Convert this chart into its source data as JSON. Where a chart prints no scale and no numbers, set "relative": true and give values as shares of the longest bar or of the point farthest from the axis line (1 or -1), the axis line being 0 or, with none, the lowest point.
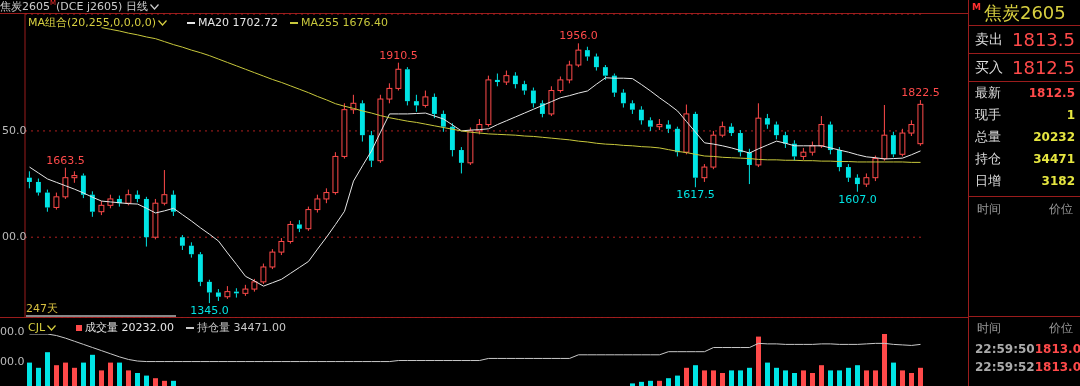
{
  "chart_data": [
    {
      "type": "candlestick",
      "title": "焦炭2605$^{M}$(DCE j2605) 日线",
      "legend": "top left",
      "legend_title": "MA组合(20,255,0,0,0,0)",
      "grid": "y",
      "tick_labels": "y",
      "marker": "none",
      "categories": [
        null,
        null,
        null,
        null,
        null,
        null,
        null,
        null,
        null,
        null,
        null,
        null,
        null,
        null,
        null,
        null,
        null,
        null,
        null,
        null,
        null,
        null,
        null,
        null,
        null,
        null,
        null,
        null,
        null,
        null,
        null,
        null,
        null,
        null,
        null,
        null,
        null,
        null,
        null,
        null,
        null,
        null,
        null,
        null,
        null,
        null,
        null,
        null,
        null,
        null,
        null,
        null,
        null,
        null,
        null,
        null,
        null,
        null,
        null,
        null,
        null,
        null,
        null,
        null,
        null,
        null,
        null,
        null,
        null,
        null,
        null,
        null,
        null,
        null,
        null,
        null,
        null,
        null,
        null,
        null,
        null,
        null,
        null,
        null,
        null,
        null,
        null,
        null,
        null,
        null,
        null,
        null,
        null,
        null,
        null,
        null,
        null,
        null,
        null,
        null
      ],
      "ylim": [
        1310,
        2025
      ],
      "yticks": [
        {
          "value": 1500,
          "label": null
        },
        {
          "value": 1750,
          "label": null
        }
      ],
      "annotations": [
        {
          "text": "1663.5",
          "y": 1663.5
        },
        {
          "text": "1345.0",
          "y": 1345.0
        },
        {
          "text": "1910.5",
          "y": 1910.5
        },
        {
          "text": "1956.0",
          "y": 1956.0
        },
        {
          "text": "1617.5",
          "y": 1617.5
        },
        {
          "text": "1607.0",
          "y": 1607.0
        },
        {
          "text": "1822.5",
          "y": 1822.5
        },
        "247天",
        "00.0",
        "50.0"
      ],
      "series": [
        {
          "type": "candlestick",
          "ohlc": [
            [
              1640,
              1655,
              1615,
              1630
            ],
            [
              1630,
              1638,
              1598,
              1605
            ],
            [
              1605,
              1612,
              1560,
              1570
            ],
            [
              1570,
              1605,
              1565,
              1595
            ],
            [
              1595,
              1663.5,
              1590,
              1640
            ],
            [
              1640,
              1655,
              1628,
              1645
            ],
            [
              1645,
              1650,
              1592,
              1600
            ],
            [
              1600,
              1608,
              1548,
              1560
            ],
            [
              1560,
              1585,
              1552,
              1575
            ],
            [
              1575,
              1600,
              1568,
              1590
            ],
            [
              1590,
              1598,
              1572,
              1580
            ],
            [
              1580,
              1612,
              1575,
              1600
            ],
            [
              1600,
              1610,
              1582,
              1590
            ],
            [
              1590,
              1595,
              1478,
              1500
            ],
            [
              1500,
              1590,
              1495,
              1580
            ],
            [
              1580,
              1658,
              1575,
              1600
            ],
            [
              1600,
              1610,
              1550,
              1560
            ],
            [
              1500,
              1505,
              1470,
              1480
            ],
            [
              1480,
              1488,
              1452,
              1460
            ],
            [
              1460,
              1465,
              1385,
              1395
            ],
            [
              1395,
              1400,
              1345.0,
              1370
            ],
            [
              1370,
              1378,
              1350,
              1360
            ],
            [
              1360,
              1385,
              1355,
              1372
            ],
            [
              1372,
              1380,
              1358,
              1368
            ],
            [
              1368,
              1388,
              1362,
              1378
            ],
            [
              1378,
              1402,
              1372,
              1395
            ],
            [
              1395,
              1438,
              1390,
              1430
            ],
            [
              1430,
              1472,
              1425,
              1465
            ],
            [
              1465,
              1498,
              1458,
              1490
            ],
            [
              1490,
              1538,
              1485,
              1530
            ],
            [
              1530,
              1540,
              1512,
              1520
            ],
            [
              1520,
              1572,
              1515,
              1565
            ],
            [
              1565,
              1600,
              1558,
              1590
            ],
            [
              1590,
              1615,
              1580,
              1605
            ],
            [
              1605,
              1700,
              1600,
              1690
            ],
            [
              1690,
              1815,
              1685,
              1800
            ],
            [
              1800,
              1835,
              1790,
              1815
            ],
            [
              1815,
              1822,
              1725,
              1740
            ],
            [
              1740,
              1750,
              1665,
              1680
            ],
            [
              1680,
              1835,
              1675,
              1825
            ],
            [
              1825,
              1862,
              1815,
              1850
            ],
            [
              1850,
              1910.5,
              1845,
              1895
            ],
            [
              1895,
              1900,
              1810,
              1820
            ],
            [
              1820,
              1835,
              1795,
              1810
            ],
            [
              1810,
              1845,
              1805,
              1830
            ],
            [
              1830,
              1838,
              1780,
              1790
            ],
            [
              1790,
              1798,
              1748,
              1760
            ],
            [
              1760,
              1768,
              1690,
              1705
            ],
            [
              1705,
              1712,
              1650,
              1675
            ],
            [
              1675,
              1758,
              1670,
              1750
            ],
            [
              1750,
              1778,
              1742,
              1765
            ],
            [
              1765,
              1880,
              1760,
              1870
            ],
            [
              1870,
              1885,
              1855,
              1865
            ],
            [
              1865,
              1892,
              1858,
              1880
            ],
            [
              1880,
              1888,
              1850,
              1860
            ],
            [
              1860,
              1868,
              1835,
              1845
            ],
            [
              1845,
              1852,
              1805,
              1815
            ],
            [
              1815,
              1822,
              1782,
              1790
            ],
            [
              1790,
              1855,
              1785,
              1845
            ],
            [
              1845,
              1878,
              1840,
              1870
            ],
            [
              1870,
              1915,
              1862,
              1905
            ],
            [
              1905,
              1956.0,
              1900,
              1940
            ],
            [
              1940,
              1948,
              1915,
              1925
            ],
            [
              1925,
              1932,
              1892,
              1900
            ],
            [
              1900,
              1905,
              1870,
              1880
            ],
            [
              1880,
              1885,
              1830,
              1840
            ],
            [
              1840,
              1848,
              1805,
              1815
            ],
            [
              1815,
              1822,
              1790,
              1800
            ],
            [
              1800,
              1808,
              1765,
              1775
            ],
            [
              1775,
              1782,
              1750,
              1760
            ],
            [
              1760,
              1778,
              1752,
              1765
            ],
            [
              1765,
              1775,
              1745,
              1755
            ],
            [
              1755,
              1760,
              1690,
              1700
            ],
            [
              1700,
              1812,
              1695,
              1790
            ],
            [
              1790,
              1795,
              1617.5,
              1640
            ],
            [
              1640,
              1672,
              1630,
              1665
            ],
            [
              1665,
              1750,
              1660,
              1740
            ],
            [
              1740,
              1772,
              1735,
              1760
            ],
            [
              1760,
              1768,
              1738,
              1745
            ],
            [
              1745,
              1752,
              1690,
              1700
            ],
            [
              1700,
              1708,
              1625,
              1670
            ],
            [
              1670,
              1815,
              1665,
              1780
            ],
            [
              1780,
              1790,
              1755,
              1765
            ],
            [
              1765,
              1772,
              1730,
              1740
            ],
            [
              1740,
              1748,
              1710,
              1720
            ],
            [
              1720,
              1728,
              1680,
              1690
            ],
            [
              1690,
              1710,
              1682,
              1700
            ],
            [
              1700,
              1725,
              1692,
              1715
            ],
            [
              1715,
              1785,
              1710,
              1765
            ],
            [
              1765,
              1772,
              1695,
              1705
            ],
            [
              1705,
              1712,
              1655,
              1665
            ],
            [
              1665,
              1672,
              1630,
              1640
            ],
            [
              1640,
              1648,
              1607.0,
              1625
            ],
            [
              1625,
              1650,
              1618,
              1640
            ],
            [
              1640,
              1692,
              1632,
              1685
            ],
            [
              1685,
              1811,
              1680,
              1740
            ],
            [
              1740,
              1748,
              1688,
              1695
            ],
            [
              1695,
              1755,
              1690,
              1745
            ],
            [
              1745,
              1775,
              1738,
              1765
            ],
            [
              1720,
              1822.5,
              1715,
              1812.5
            ]
          ],
          "colors": [
            "#00e5e5",
            "#00e5e5",
            "#00e5e5",
            "#ff4a4a",
            "#ff4a4a",
            "#ff4a4a",
            "#00e5e5",
            "#00e5e5",
            "#ff4a4a",
            "#ff4a4a",
            "#00e5e5",
            "#ff4a4a",
            "#00e5e5",
            "#00e5e5",
            "#ff4a4a",
            "#ff4a4a",
            "#00e5e5",
            "#00e5e5",
            "#00e5e5",
            "#00e5e5",
            "#00e5e5",
            "#00e5e5",
            "#ff4a4a",
            "#00e5e5",
            "#ff4a4a",
            "#ff4a4a",
            "#ff4a4a",
            "#ff4a4a",
            "#ff4a4a",
            "#ff4a4a",
            "#00e5e5",
            "#ff4a4a",
            "#ff4a4a",
            "#ff4a4a",
            "#ff4a4a",
            "#ff4a4a",
            "#ff4a4a",
            "#00e5e5",
            "#00e5e5",
            "#ff4a4a",
            "#ff4a4a",
            "#ff4a4a",
            "#00e5e5",
            "#00e5e5",
            "#ff4a4a",
            "#00e5e5",
            "#00e5e5",
            "#00e5e5",
            "#00e5e5",
            "#ff4a4a",
            "#ff4a4a",
            "#ff4a4a",
            "#00e5e5",
            "#ff4a4a",
            "#00e5e5",
            "#00e5e5",
            "#00e5e5",
            "#00e5e5",
            "#ff4a4a",
            "#ff4a4a",
            "#ff4a4a",
            "#ff4a4a",
            "#00e5e5",
            "#00e5e5",
            "#00e5e5",
            "#00e5e5",
            "#00e5e5",
            "#00e5e5",
            "#00e5e5",
            "#00e5e5",
            "#ff4a4a",
            "#00e5e5",
            "#00e5e5",
            "#ff4a4a",
            "#00e5e5",
            "#ff4a4a",
            "#ff4a4a",
            "#ff4a4a",
            "#00e5e5",
            "#00e5e5",
            "#00e5e5",
            "#ff4a4a",
            "#00e5e5",
            "#00e5e5",
            "#00e5e5",
            "#00e5e5",
            "#ff4a4a",
            "#ff4a4a",
            "#ff4a4a",
            "#00e5e5",
            "#00e5e5",
            "#00e5e5",
            "#00e5e5",
            "#ff4a4a",
            "#ff4a4a",
            "#ff4a4a",
            "#00e5e5",
            "#ff4a4a",
            "#ff4a4a",
            "#ff4a4a"
          ]
        },
        {
          "type": "line",
          "name": "MA20 1702.72",
          "color": "#e6e6e6",
          "values": [
            1665,
            1651,
            1637,
            1629,
            1621,
            1613,
            1604,
            1594,
            1585,
            1583,
            1581,
            1579,
            1578,
            1568,
            1557,
            1562,
            1568,
            1553,
            1538,
            1522,
            1507,
            1491,
            1463,
            1436,
            1408,
            1397,
            1385,
            1393,
            1401,
            1415,
            1429,
            1443,
            1472,
            1500,
            1530,
            1561,
            1632,
            1668,
            1703,
            1747,
            1790,
            1790,
            1790,
            1791,
            1792,
            1785,
            1778,
            1764,
            1750,
            1752,
            1753,
            1755,
            1765,
            1774,
            1783,
            1792,
            1801,
            1810,
            1819,
            1828,
            1833,
            1839,
            1844,
            1860,
            1875,
            1874,
            1874,
            1873,
            1859,
            1844,
            1828,
            1813,
            1797,
            1772,
            1747,
            1722,
            1719,
            1715,
            1710,
            1704,
            1698,
            1708,
            1717,
            1726,
            1721,
            1715,
            1715,
            1715,
            1715,
            1710,
            1705,
            1700,
            1694,
            1689,
            1687,
            1684,
            1685,
            1686,
            1694,
            1703
          ]
        },
        {
          "type": "line",
          "name": "MA255 1676.40",
          "color": "#c8c83c",
          "values": [
            null,
            null,
            null,
            null,
            null,
            null,
            null,
            null,
            1993,
            1989,
            1985,
            1980,
            1976,
            1971,
            1967,
            1960,
            1953,
            1947,
            1940,
            1934,
            1927,
            1919,
            1911,
            1903,
            1895,
            1887,
            1879,
            1871,
            1864,
            1856,
            1848,
            1840,
            1831,
            1823,
            1814,
            1808,
            1803,
            1797,
            1792,
            1786,
            1781,
            1777,
            1773,
            1770,
            1766,
            1762,
            1758,
            1754,
            1750,
            1747,
            1745,
            1743,
            1742,
            1741,
            1740,
            1738,
            1737,
            1735,
            1733,
            1731,
            1729,
            1726,
            1724,
            1721,
            1719,
            1718,
            1716,
            1715,
            1713,
            1712,
            1710,
            1706,
            1702,
            1699,
            1695,
            1691,
            1690,
            1688,
            1687,
            1686,
            1685,
            1683,
            1682,
            1682,
            1681,
            1681,
            1680,
            1680,
            1679,
            1679,
            1678,
            1678,
            1677,
            1677,
            1677,
            1677,
            1677,
            1677,
            1676,
            1676
          ]
        }
      ]
    },
    {
      "type": "bar",
      "relative": true,
      "legend": "top left",
      "legend_title": "CJL",
      "tick_labels": false,
      "marker": "none",
      "categories": [
        null,
        null,
        null,
        null,
        null,
        null,
        null,
        null,
        null,
        null,
        null,
        null,
        null,
        null,
        null,
        null,
        null,
        null,
        null,
        null,
        null,
        null,
        null,
        null,
        null,
        null,
        null,
        null,
        null,
        null,
        null,
        null,
        null,
        null,
        null,
        null,
        null,
        null,
        null,
        null,
        null,
        null,
        null,
        null,
        null,
        null,
        null,
        null,
        null,
        null,
        null,
        null,
        null,
        null,
        null,
        null,
        null,
        null,
        null,
        null,
        null,
        null,
        null,
        null,
        null,
        null,
        null,
        null,
        null,
        null,
        null,
        null,
        null,
        null,
        null,
        null,
        null,
        null,
        null,
        null,
        null,
        null,
        null,
        null,
        null,
        null,
        null,
        null,
        null,
        null,
        null,
        null,
        null,
        null,
        null,
        null,
        null,
        null,
        null,
        null
      ],
      "annotations": [
        "00.0",
        "00.0"
      ],
      "series": [
        {
          "type": "bar",
          "name": "成交量 20232.00",
          "values": [
            0.45,
            0.35,
            0.65,
            0.4,
            0.45,
            0.35,
            0.45,
            0.6,
            0.3,
            0.45,
            0.45,
            0.3,
            0.25,
            0.2,
            0.15,
            0.1,
            0.1,
            null,
            null,
            null,
            null,
            null,
            null,
            null,
            null,
            null,
            null,
            null,
            null,
            null,
            null,
            null,
            null,
            null,
            null,
            null,
            null,
            null,
            null,
            null,
            null,
            null,
            null,
            null,
            null,
            null,
            null,
            null,
            null,
            null,
            null,
            null,
            null,
            null,
            null,
            null,
            null,
            null,
            null,
            null,
            null,
            null,
            null,
            null,
            null,
            null,
            null,
            0.05,
            0.08,
            0.1,
            0.1,
            0.15,
            0.2,
            0.35,
            0.4,
            0.3,
            0.3,
            0.25,
            0.3,
            0.3,
            0.35,
            0.95,
            0.45,
            0.35,
            0.3,
            0.25,
            0.3,
            0.25,
            0.4,
            0.3,
            0.3,
            0.35,
            0.4,
            0.3,
            0.3,
            1,
            0.45,
            0.3,
            0.25,
            0.35
          ],
          "colors": [
            "#00e5e5",
            "#00e5e5",
            "#00e5e5",
            "#ff4a4a",
            "#ff4a4a",
            "#ff4a4a",
            "#00e5e5",
            "#00e5e5",
            "#ff4a4a",
            "#ff4a4a",
            "#00e5e5",
            "#ff4a4a",
            "#00e5e5",
            "#00e5e5",
            "#ff4a4a",
            "#ff4a4a",
            "#00e5e5",
            "#00e5e5",
            "#00e5e5",
            "#00e5e5",
            "#00e5e5",
            "#00e5e5",
            "#ff4a4a",
            "#00e5e5",
            "#ff4a4a",
            "#ff4a4a",
            "#ff4a4a",
            "#ff4a4a",
            "#ff4a4a",
            "#ff4a4a",
            "#00e5e5",
            "#ff4a4a",
            "#ff4a4a",
            "#ff4a4a",
            "#ff4a4a",
            "#ff4a4a",
            "#ff4a4a",
            "#00e5e5",
            "#00e5e5",
            "#ff4a4a",
            "#ff4a4a",
            "#ff4a4a",
            "#00e5e5",
            "#00e5e5",
            "#ff4a4a",
            "#00e5e5",
            "#00e5e5",
            "#00e5e5",
            "#00e5e5",
            "#ff4a4a",
            "#ff4a4a",
            "#ff4a4a",
            "#00e5e5",
            "#ff4a4a",
            "#00e5e5",
            "#00e5e5",
            "#00e5e5",
            "#00e5e5",
            "#ff4a4a",
            "#ff4a4a",
            "#ff4a4a",
            "#ff4a4a",
            "#00e5e5",
            "#00e5e5",
            "#00e5e5",
            "#00e5e5",
            "#00e5e5",
            "#00e5e5",
            "#00e5e5",
            "#00e5e5",
            "#ff4a4a",
            "#00e5e5",
            "#00e5e5",
            "#ff4a4a",
            "#00e5e5",
            "#ff4a4a",
            "#ff4a4a",
            "#ff4a4a",
            "#00e5e5",
            "#00e5e5",
            "#00e5e5",
            "#ff4a4a",
            "#00e5e5",
            "#00e5e5",
            "#00e5e5",
            "#00e5e5",
            "#ff4a4a",
            "#ff4a4a",
            "#ff4a4a",
            "#00e5e5",
            "#00e5e5",
            "#00e5e5",
            "#00e5e5",
            "#ff4a4a",
            "#ff4a4a",
            "#ff4a4a",
            "#00e5e5",
            "#ff4a4a",
            "#ff4a4a",
            "#ff4a4a"
          ]
        },
        {
          "type": "line",
          "name": "持仓量 34471.00",
          "color": "#c8c8c8",
          "values": [
            1,
            1,
            1,
            0.97,
            0.92,
            0.86,
            0.8,
            0.74,
            0.68,
            0.62,
            0.56,
            0.51,
            0.48,
            0.47,
            0.47,
            0.47,
            0.47,
            0.47,
            0.47,
            0.47,
            0.47,
            0.47,
            0.47,
            0.47,
            0.47,
            0.47,
            0.47,
            0.47,
            0.47,
            0.47,
            0.47,
            0.47,
            0.47,
            0.47,
            0.47,
            0.47,
            0.47,
            0.47,
            0.47,
            0.47,
            0.47,
            0.49,
            0.49,
            0.49,
            0.49,
            0.49,
            0.49,
            0.49,
            0.49,
            0.49,
            0.49,
            0.53,
            0.53,
            0.53,
            0.53,
            0.53,
            0.53,
            0.53,
            0.53,
            0.53,
            0.53,
            0.6,
            0.6,
            0.6,
            0.6,
            0.6,
            0.6,
            0.6,
            0.6,
            0.6,
            0.6,
            0.66,
            0.66,
            0.66,
            0.66,
            0.66,
            0.74,
            0.74,
            0.74,
            0.74,
            0.74,
            0.82,
            0.81,
            0.81,
            0.8,
            0.8,
            0.8,
            0.8,
            0.81,
            0.81,
            0.8,
            0.8,
            0.8,
            0.81,
            0.82,
            0.82,
            0.8,
            0.79,
            0.78,
            0.8
          ]
        }
      ]
    },
    {
      "type": "other",
      "title": "焦炭2605",
      "categories": [
        "卖出",
        "买入",
        "最新",
        "现手",
        "总量",
        "持仓",
        "日增"
      ],
      "value_labels": [
        "1813.5",
        "1812.5",
        "1812.5",
        "1",
        "20232",
        "34471",
        "3182"
      ],
      "annotations": [
        "M",
        "时间",
        "价位",
        "时间",
        "价位",
        "22:59:50",
        "1813.0",
        "22:59:52",
        "1813.0"
      ]
    }
  ]
}
